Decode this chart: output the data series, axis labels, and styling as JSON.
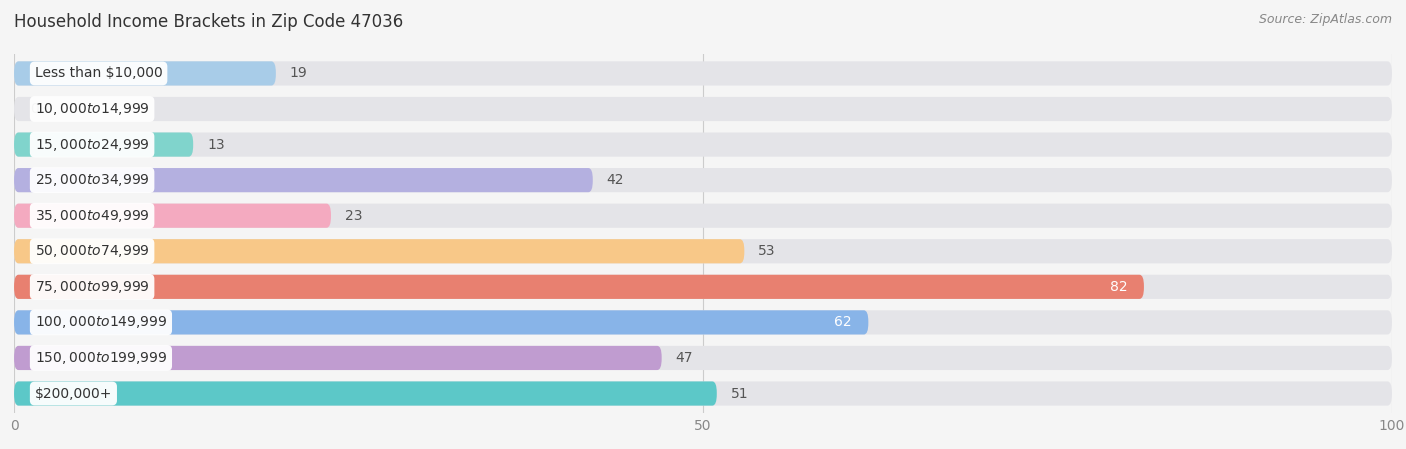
{
  "title": "Household Income Brackets in Zip Code 47036",
  "source": "Source: ZipAtlas.com",
  "categories": [
    "Less than $10,000",
    "$10,000 to $14,999",
    "$15,000 to $24,999",
    "$25,000 to $34,999",
    "$35,000 to $49,999",
    "$50,000 to $74,999",
    "$75,000 to $99,999",
    "$100,000 to $149,999",
    "$150,000 to $199,999",
    "$200,000+"
  ],
  "values": [
    19,
    0,
    13,
    42,
    23,
    53,
    82,
    62,
    47,
    51
  ],
  "bar_colors": [
    "#a8cce8",
    "#c8aad8",
    "#80d4cc",
    "#b4b0e0",
    "#f4aac0",
    "#f8c888",
    "#e88070",
    "#88b4e8",
    "#c09cd0",
    "#5cc8c8"
  ],
  "label_colors": [
    "#555555",
    "#555555",
    "#555555",
    "#555555",
    "#555555",
    "#555555",
    "#ffffff",
    "#ffffff",
    "#555555",
    "#555555"
  ],
  "xlim": [
    0,
    100
  ],
  "background_color": "#f5f5f5",
  "bar_background_color": "#e4e4e8",
  "title_fontsize": 12,
  "source_fontsize": 9,
  "label_fontsize": 10,
  "category_fontsize": 10
}
